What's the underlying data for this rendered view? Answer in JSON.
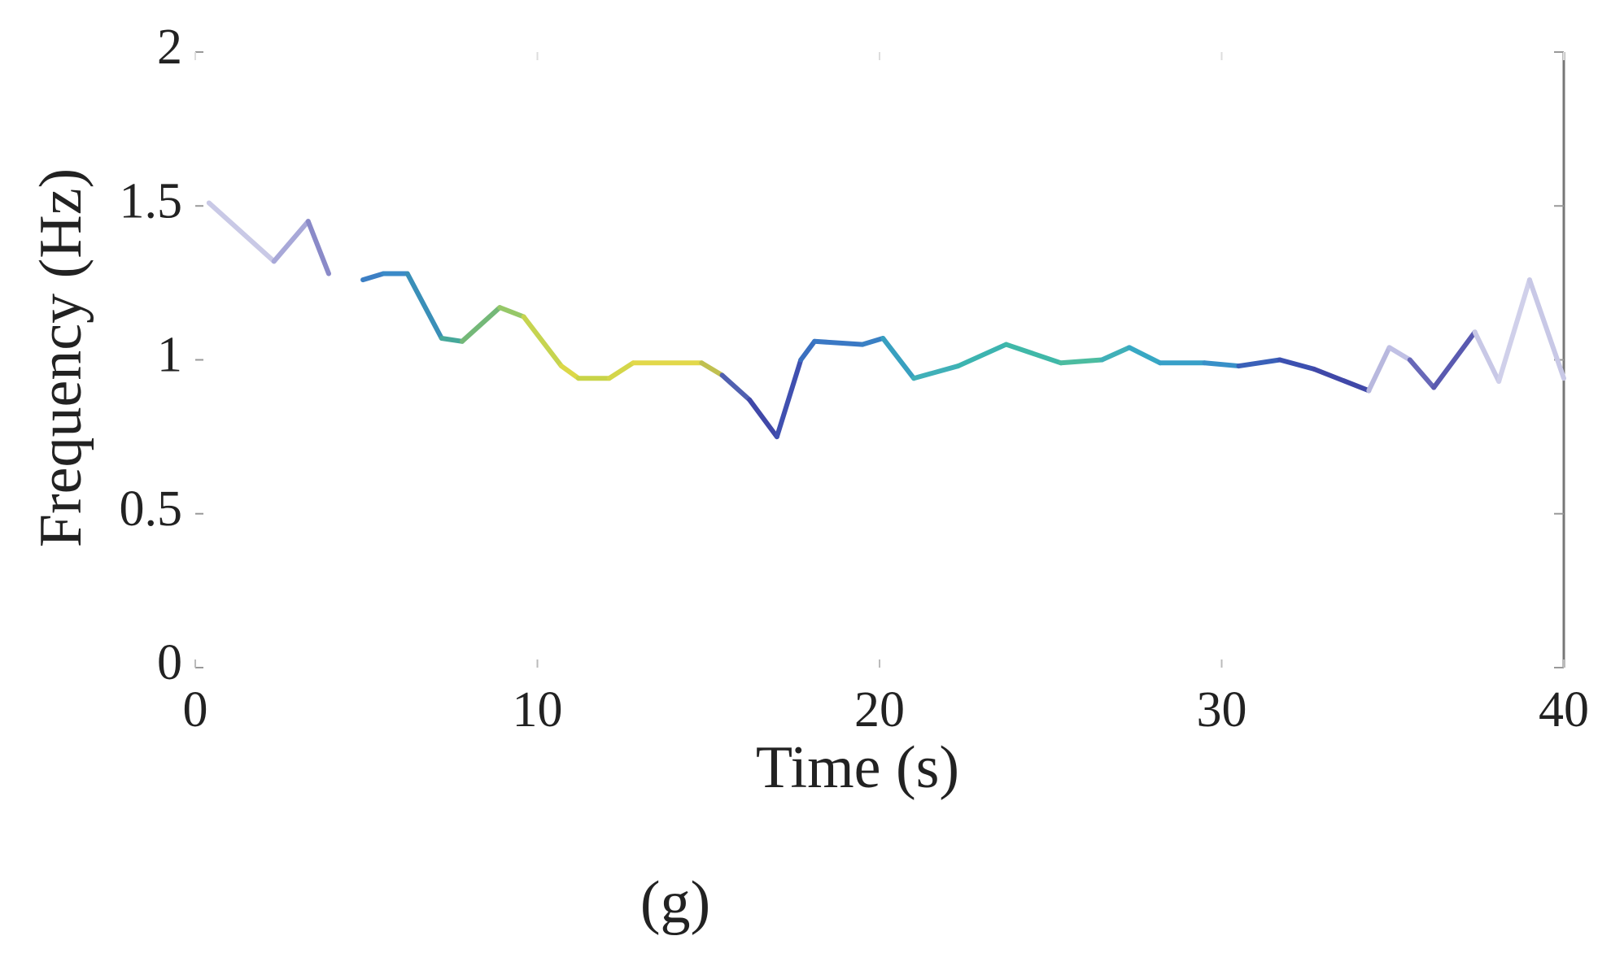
{
  "chart_data": {
    "type": "line",
    "xlabel": "Time (s)",
    "ylabel": "Frequency (Hz)",
    "caption": "(g)",
    "x": [
      0.4,
      2.3,
      3.3,
      3.9,
      4.4,
      4.9,
      5.5,
      6.2,
      7.2,
      7.8,
      8.9,
      9.6,
      10.7,
      11.2,
      12.1,
      12.8,
      14.8,
      15.4,
      16.2,
      17.0,
      17.7,
      18.1,
      19.5,
      20.1,
      21.0,
      22.3,
      23.7,
      25.3,
      26.5,
      27.3,
      28.2,
      29.5,
      30.5,
      31.7,
      32.7,
      34.3,
      34.9,
      35.5,
      36.2,
      37.4,
      38.1,
      39.0,
      40.0
    ],
    "series": [
      {
        "values": [
          1.51,
          1.32,
          1.45,
          1.28,
          null,
          1.26,
          1.28,
          1.28,
          1.07,
          1.06,
          1.17,
          1.14,
          0.98,
          0.94,
          0.94,
          0.99,
          0.99,
          0.95,
          0.87,
          0.75,
          1.0,
          1.06,
          1.05,
          1.07,
          0.94,
          0.98,
          1.05,
          0.99,
          1.0,
          1.04,
          0.99,
          0.99,
          0.98,
          1.0,
          0.97,
          0.9,
          1.04,
          1.0,
          0.91,
          1.09,
          0.93,
          1.26,
          0.94
        ],
        "colors": [
          "#c9c9e6",
          "#a8a8d8",
          "#8a8ac8",
          "#b8b8e0",
          "#b8b8e0",
          "#3c7fc4",
          "#3a8ac8",
          "#3a8fb8",
          "#46a89a",
          "#74b878",
          "#96c868",
          "#c6d450",
          "#dcd848",
          "#c8d448",
          "#d4d64a",
          "#e2d84a",
          "#c0c050",
          "#5060b0",
          "#4048a8",
          "#4050b0",
          "#3a70c0",
          "#3a78c4",
          "#3a80c4",
          "#38a0c0",
          "#40b0b8",
          "#3cb4b0",
          "#40b8a8",
          "#4cbca0",
          "#40b0b8",
          "#38a8c4",
          "#38a0c8",
          "#3890c8",
          "#3a60b8",
          "#3c50b0",
          "#4048a8",
          "#b8b8de",
          "#c0c0e4",
          "#6868b8",
          "#5a5ab0",
          "#c8c8e6",
          "#d0d0ea",
          "#c8c8e6",
          "#c8c8e6"
        ]
      }
    ],
    "xlim": [
      0,
      40
    ],
    "xticks": [
      0,
      10,
      20,
      30,
      40
    ],
    "ylim": [
      0,
      2
    ],
    "yticks": [
      0,
      0.5,
      1,
      1.5,
      2
    ]
  }
}
